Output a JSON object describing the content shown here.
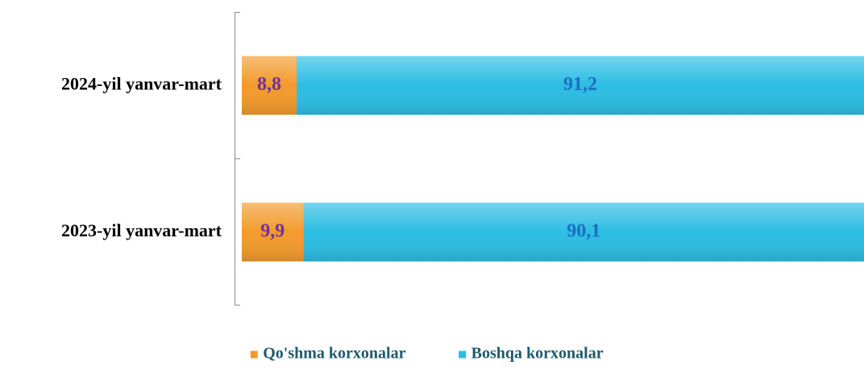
{
  "chart_data": {
    "type": "stacked_barh",
    "categories": [
      "2024-yil yanvar-mart",
      "2023-yil yanvar-mart"
    ],
    "series": [
      {
        "name": "Qo'shma korxonalar",
        "color": "#f39a2b",
        "label_color": "#7030a0",
        "values": [
          8.8,
          9.9
        ],
        "value_labels": [
          "8,8",
          "9,9"
        ]
      },
      {
        "name": "Boshqa korxonalar",
        "color": "#2bbde3",
        "label_color": "#1b6fc0",
        "values": [
          91.2,
          90.1
        ],
        "value_labels": [
          "91,2",
          "90,1"
        ]
      }
    ],
    "xlim": [
      0,
      100
    ],
    "legend": "bottom"
  }
}
